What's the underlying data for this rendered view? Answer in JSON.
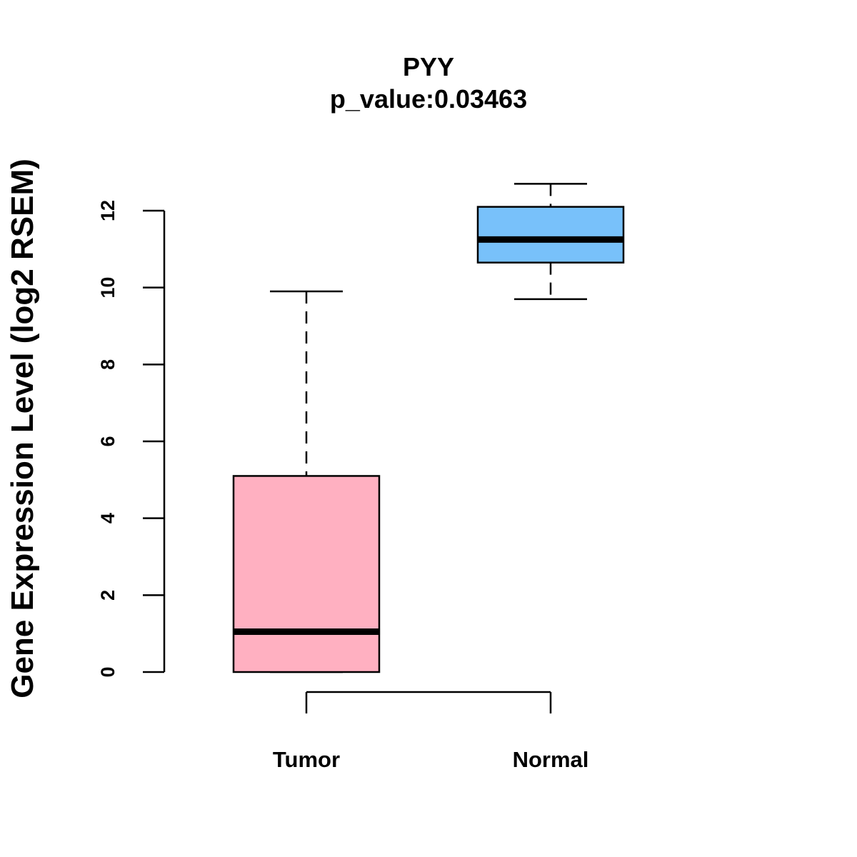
{
  "chart_data": {
    "type": "boxplot",
    "title": "PYY",
    "subtitle": "p_value:0.03463",
    "xlabel": "",
    "ylabel": "Gene Expression Level (log2 RSEM)",
    "ylim": [
      0,
      12
    ],
    "yticks": [
      0,
      2,
      4,
      6,
      8,
      10,
      12
    ],
    "grid": false,
    "categories": [
      "Tumor",
      "Normal"
    ],
    "boxes": [
      {
        "name": "Tumor",
        "min": 0,
        "q1": 0,
        "median": 1.05,
        "q3": 5.1,
        "max": 9.9,
        "color": "#FFB0C1"
      },
      {
        "name": "Normal",
        "min": 9.7,
        "q1": 10.65,
        "median": 11.25,
        "q3": 12.1,
        "max": 12.7,
        "color": "#78C1FA"
      }
    ]
  }
}
